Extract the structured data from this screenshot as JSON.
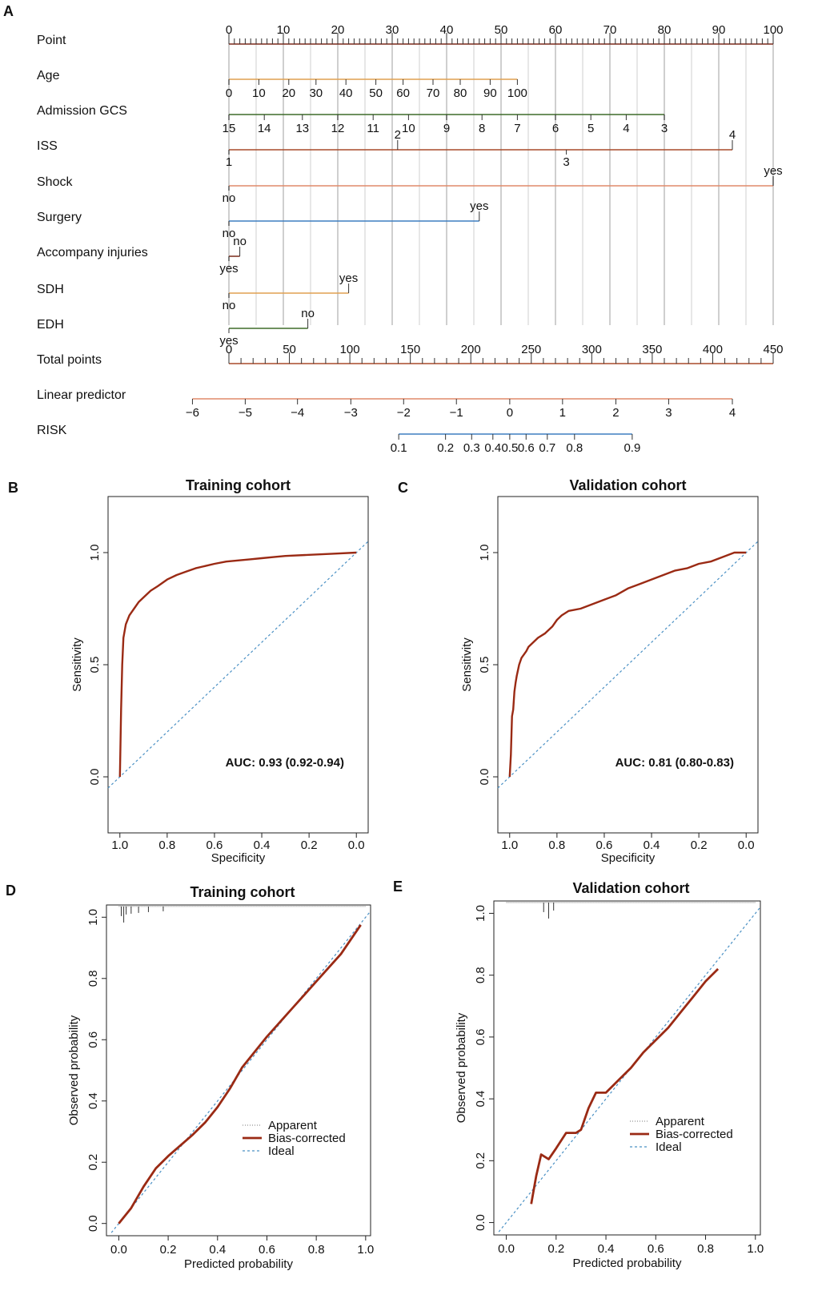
{
  "nomogram": {
    "letter": "A",
    "colors": {
      "grid": "#cfcfcf",
      "brown": "#7b2a1a",
      "orange": "#e0a050",
      "green": "#3f6b2a",
      "rust": "#a84a2a",
      "salmon": "#e08a6a",
      "blue": "#3f7fc0"
    },
    "rows": [
      {
        "label": "Point",
        "color": "brown",
        "scale": {
          "min": 0,
          "max": 100,
          "step": 10,
          "minor": 1
        },
        "ticks": [
          {
            "v": 0,
            "t": "0"
          },
          {
            "v": 10,
            "t": "10"
          },
          {
            "v": 20,
            "t": "20"
          },
          {
            "v": 30,
            "t": "30"
          },
          {
            "v": 40,
            "t": "40"
          },
          {
            "v": 50,
            "t": "50"
          },
          {
            "v": 60,
            "t": "60"
          },
          {
            "v": 70,
            "t": "70"
          },
          {
            "v": 80,
            "t": "80"
          },
          {
            "v": 90,
            "t": "90"
          },
          {
            "v": 100,
            "t": "100"
          }
        ]
      },
      {
        "label": "Age",
        "color": "orange",
        "ticks": [
          {
            "v": 0,
            "t": "0"
          },
          {
            "v": 5.5,
            "t": "10"
          },
          {
            "v": 11,
            "t": "20"
          },
          {
            "v": 16,
            "t": "30"
          },
          {
            "v": 21.5,
            "t": "40"
          },
          {
            "v": 27,
            "t": "50"
          },
          {
            "v": 32,
            "t": "60"
          },
          {
            "v": 37.5,
            "t": "70"
          },
          {
            "v": 42.5,
            "t": "80"
          },
          {
            "v": 48,
            "t": "90"
          },
          {
            "v": 53,
            "t": "100"
          }
        ]
      },
      {
        "label": "Admission GCS",
        "color": "green",
        "ticks": [
          {
            "v": 0,
            "t": "15"
          },
          {
            "v": 6.5,
            "t": "14"
          },
          {
            "v": 13.5,
            "t": "13"
          },
          {
            "v": 20,
            "t": "12"
          },
          {
            "v": 26.5,
            "t": "11"
          },
          {
            "v": 33,
            "t": "10"
          },
          {
            "v": 40,
            "t": "9"
          },
          {
            "v": 46.5,
            "t": "8"
          },
          {
            "v": 53,
            "t": "7"
          },
          {
            "v": 60,
            "t": "6"
          },
          {
            "v": 66.5,
            "t": "5"
          },
          {
            "v": 73,
            "t": "4"
          },
          {
            "v": 80,
            "t": "3"
          }
        ]
      },
      {
        "label": "ISS",
        "color": "rust",
        "ticks": [
          {
            "v": 0,
            "t": "1",
            "pos": "below"
          },
          {
            "v": 31,
            "t": "2",
            "pos": "above"
          },
          {
            "v": 62,
            "t": "3",
            "pos": "below"
          },
          {
            "v": 92.5,
            "t": "4",
            "pos": "above"
          }
        ]
      },
      {
        "label": "Shock",
        "color": "salmon",
        "ticks": [
          {
            "v": 0,
            "t": "no",
            "pos": "below"
          },
          {
            "v": 100,
            "t": "yes",
            "pos": "above"
          }
        ]
      },
      {
        "label": "Surgery",
        "color": "blue",
        "ticks": [
          {
            "v": 0,
            "t": "no",
            "pos": "below"
          },
          {
            "v": 46,
            "t": "yes",
            "pos": "above"
          }
        ]
      },
      {
        "label": "Accompany injuries",
        "color": "brown",
        "ticks": [
          {
            "v": 0,
            "t": "yes",
            "pos": "below"
          },
          {
            "v": 2,
            "t": "no",
            "pos": "above"
          }
        ]
      },
      {
        "label": "SDH",
        "color": "orange",
        "ticks": [
          {
            "v": 0,
            "t": "no",
            "pos": "below"
          },
          {
            "v": 22,
            "t": "yes",
            "pos": "above"
          }
        ]
      },
      {
        "label": "EDH",
        "color": "green",
        "ticks": [
          {
            "v": 0,
            "t": "yes",
            "pos": "below"
          },
          {
            "v": 14.5,
            "t": "no",
            "pos": "above"
          }
        ]
      },
      {
        "label": "Total points",
        "color": "rust",
        "scale": {
          "min": 0,
          "max": 450,
          "step": 50,
          "minor": 10
        },
        "ticks": [
          {
            "v": 0,
            "t": "0"
          },
          {
            "v": 50,
            "t": "50"
          },
          {
            "v": 100,
            "t": "100"
          },
          {
            "v": 150,
            "t": "150"
          },
          {
            "v": 200,
            "t": "200"
          },
          {
            "v": 250,
            "t": "250"
          },
          {
            "v": 300,
            "t": "300"
          },
          {
            "v": 350,
            "t": "350"
          },
          {
            "v": 400,
            "t": "400"
          },
          {
            "v": 450,
            "t": "450"
          }
        ]
      },
      {
        "label": "Linear predictor",
        "color": "salmon",
        "ticks": [
          {
            "v": -6.7,
            "t": "−6"
          },
          {
            "v": 3,
            "t": "−5"
          },
          {
            "v": 12.6,
            "t": "−4"
          },
          {
            "v": 22.4,
            "t": "−3"
          },
          {
            "v": 32.1,
            "t": "−2"
          },
          {
            "v": 41.8,
            "t": "−1"
          },
          {
            "v": 51.6,
            "t": "0"
          },
          {
            "v": 61.3,
            "t": "1"
          },
          {
            "v": 71.1,
            "t": "2"
          },
          {
            "v": 80.8,
            "t": "3"
          },
          {
            "v": 92.5,
            "t": "4"
          }
        ]
      },
      {
        "label": "RISK",
        "color": "blue",
        "ticks": [
          {
            "v": 31.2,
            "t": "0.1"
          },
          {
            "v": 39.8,
            "t": "0.2"
          },
          {
            "v": 44.6,
            "t": "0.3"
          },
          {
            "v": 48.5,
            "t": "0.4"
          },
          {
            "v": 51.6,
            "t": "0.5"
          },
          {
            "v": 54.6,
            "t": "0.6"
          },
          {
            "v": 58.5,
            "t": "0.7"
          },
          {
            "v": 63.5,
            "t": "0.8"
          },
          {
            "v": 74.1,
            "t": "0.9"
          }
        ]
      }
    ]
  },
  "roc_panels": [
    {
      "letter": "B",
      "title": "Training cohort",
      "xlabel": "Specificity",
      "ylabel": "Sensitivity",
      "xticks": [
        "1.0",
        "0.8",
        "0.6",
        "0.4",
        "0.2",
        "0.0"
      ],
      "yticks": [
        "0.0",
        "0.5",
        "1.0"
      ],
      "auc": "AUC: 0.93 (0.92-0.94)",
      "curve": {
        "specificity": [
          1.0,
          0.995,
          0.99,
          0.985,
          0.975,
          0.96,
          0.94,
          0.92,
          0.9,
          0.87,
          0.84,
          0.8,
          0.76,
          0.72,
          0.68,
          0.64,
          0.6,
          0.55,
          0.5,
          0.45,
          0.4,
          0.35,
          0.3,
          0.2,
          0.1,
          0.0
        ],
        "sensitivity": [
          0.0,
          0.3,
          0.5,
          0.62,
          0.68,
          0.72,
          0.75,
          0.78,
          0.8,
          0.83,
          0.85,
          0.88,
          0.9,
          0.915,
          0.93,
          0.94,
          0.95,
          0.96,
          0.965,
          0.97,
          0.975,
          0.98,
          0.985,
          0.99,
          0.995,
          1.0
        ]
      }
    },
    {
      "letter": "C",
      "title": "Validation cohort",
      "xlabel": "Specificity",
      "ylabel": "Sensitivity",
      "xticks": [
        "1.0",
        "0.8",
        "0.6",
        "0.4",
        "0.2",
        "0.0"
      ],
      "yticks": [
        "0.0",
        "0.5",
        "1.0"
      ],
      "auc": "AUC: 0.81 (0.80-0.83)",
      "curve": {
        "specificity": [
          1.0,
          0.995,
          0.99,
          0.985,
          0.98,
          0.975,
          0.97,
          0.96,
          0.95,
          0.93,
          0.92,
          0.9,
          0.88,
          0.85,
          0.82,
          0.8,
          0.78,
          0.75,
          0.7,
          0.65,
          0.6,
          0.55,
          0.5,
          0.45,
          0.4,
          0.35,
          0.3,
          0.25,
          0.2,
          0.15,
          0.1,
          0.05,
          0.0
        ],
        "sensitivity": [
          0.0,
          0.1,
          0.27,
          0.3,
          0.38,
          0.42,
          0.45,
          0.5,
          0.53,
          0.56,
          0.58,
          0.6,
          0.62,
          0.64,
          0.67,
          0.7,
          0.72,
          0.74,
          0.75,
          0.77,
          0.79,
          0.81,
          0.84,
          0.86,
          0.88,
          0.9,
          0.92,
          0.93,
          0.95,
          0.96,
          0.98,
          1.0,
          1.0
        ]
      }
    }
  ],
  "calibration_panels": [
    {
      "letter": "D",
      "title": "Training cohort",
      "xlabel": "Predicted probability",
      "ylabel": "Observed probability",
      "xticks": [
        "0.0",
        "0.2",
        "0.4",
        "0.6",
        "0.8",
        "1.0"
      ],
      "yticks": [
        "0.0",
        "0.2",
        "0.4",
        "0.6",
        "0.8",
        "1.0"
      ],
      "legend": [
        "Apparent",
        "Bias-corrected",
        "Ideal"
      ],
      "bias_corrected": {
        "x": [
          0.0,
          0.05,
          0.1,
          0.15,
          0.2,
          0.25,
          0.3,
          0.35,
          0.4,
          0.45,
          0.5,
          0.6,
          0.7,
          0.8,
          0.9,
          0.98
        ],
        "y": [
          0.0,
          0.05,
          0.12,
          0.18,
          0.22,
          0.255,
          0.29,
          0.33,
          0.38,
          0.44,
          0.51,
          0.61,
          0.7,
          0.79,
          0.88,
          0.975
        ]
      },
      "rug": [
        0.01,
        0.02,
        0.03,
        0.05,
        0.08,
        0.12,
        0.18
      ]
    },
    {
      "letter": "E",
      "title": "Validation cohort",
      "xlabel": "Predicted probability",
      "ylabel": "Observed probability",
      "xticks": [
        "0.0",
        "0.2",
        "0.4",
        "0.6",
        "0.8",
        "1.0"
      ],
      "yticks": [
        "0.0",
        "0.2",
        "0.4",
        "0.6",
        "0.8",
        "1.0"
      ],
      "legend": [
        "Apparent",
        "Bias-corrected",
        "Ideal"
      ],
      "bias_corrected": {
        "x": [
          0.1,
          0.12,
          0.14,
          0.17,
          0.2,
          0.24,
          0.28,
          0.3,
          0.33,
          0.36,
          0.4,
          0.45,
          0.5,
          0.55,
          0.6,
          0.65,
          0.7,
          0.75,
          0.8,
          0.85
        ],
        "y": [
          0.06,
          0.15,
          0.22,
          0.205,
          0.24,
          0.29,
          0.29,
          0.3,
          0.37,
          0.42,
          0.42,
          0.46,
          0.5,
          0.55,
          0.59,
          0.63,
          0.68,
          0.73,
          0.78,
          0.82
        ]
      },
      "rug": [
        0.15,
        0.17,
        0.19
      ]
    }
  ]
}
